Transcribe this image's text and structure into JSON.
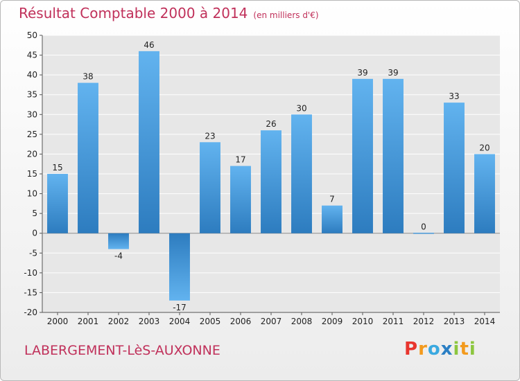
{
  "header": {
    "title": "Résultat Comptable 2000 à 2014",
    "subtitle": "(en milliers d'€)"
  },
  "footer": {
    "commune": "LABERGEMENT-LèS-AUXONNE",
    "logo_letters": [
      "P",
      "r",
      "o",
      "x",
      "i",
      "t",
      "i"
    ],
    "logo_colors": [
      "#e8352e",
      "#f39a1d",
      "#3aa9e0",
      "#2b7fc4",
      "#8cc63f",
      "#f39a1d",
      "#8cc63f"
    ]
  },
  "chart_data": {
    "type": "bar",
    "categories": [
      "2000",
      "2001",
      "2002",
      "2003",
      "2004",
      "2005",
      "2006",
      "2007",
      "2008",
      "2009",
      "2010",
      "2011",
      "2012",
      "2013",
      "2014"
    ],
    "values": [
      15,
      38,
      -4,
      46,
      -17,
      23,
      17,
      26,
      30,
      7,
      39,
      39,
      0,
      33,
      20
    ],
    "ylim": [
      -20,
      50
    ],
    "yticks": [
      -20,
      -15,
      -10,
      -5,
      0,
      5,
      10,
      15,
      20,
      25,
      30,
      35,
      40,
      45,
      50
    ],
    "grid": true,
    "bar_color_light": "#62b3ef",
    "bar_color_dark": "#2d7cbf"
  }
}
